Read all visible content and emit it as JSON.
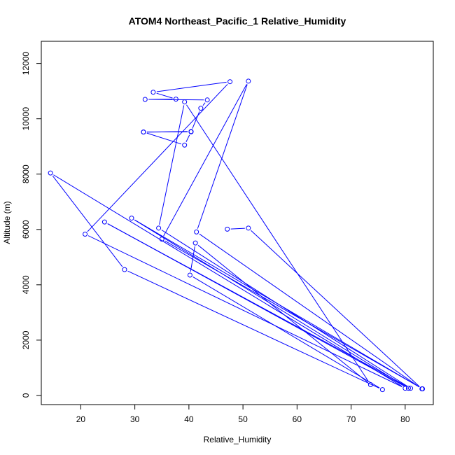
{
  "chart_data": {
    "type": "line",
    "title": "ATOM4 Northeast_Pacific_1 Relative_Humidity",
    "xlabel": "Relative_Humidity",
    "ylabel": "Altitude (m)",
    "xlim": [
      12.7,
      85.2
    ],
    "ylim": [
      -330,
      12800
    ],
    "xticks": [
      20,
      30,
      40,
      50,
      60,
      70,
      80
    ],
    "yticks": [
      0,
      2000,
      4000,
      6000,
      8000,
      10000,
      12000
    ],
    "grid": false,
    "colors": {
      "series": "#0000ff",
      "axis": "#000000"
    },
    "series": [
      {
        "x": [
          40.4,
          31.6,
          40.4,
          39.2,
          31.6,
          40.4,
          42.2,
          43.4,
          31.9,
          37.6,
          33.4,
          47.6,
          20.8,
          80.0,
          14.4,
          28.1,
          75.8,
          40.2,
          41.2,
          73.6,
          39.2,
          34.4,
          81.0,
          24.4,
          80.6,
          29.4,
          83.2,
          35.0,
          51.0,
          41.4,
          83.1,
          51.0,
          47.1
        ],
        "y": [
          9540,
          9520,
          9530,
          9050,
          9520,
          9530,
          10380,
          10680,
          10700,
          10710,
          10960,
          11340,
          5830,
          260,
          8040,
          4550,
          210,
          4350,
          5510,
          390,
          10610,
          6050,
          260,
          6270,
          260,
          6410,
          240,
          5650,
          11360,
          5910,
          240,
          6050,
          6010
        ]
      }
    ]
  }
}
